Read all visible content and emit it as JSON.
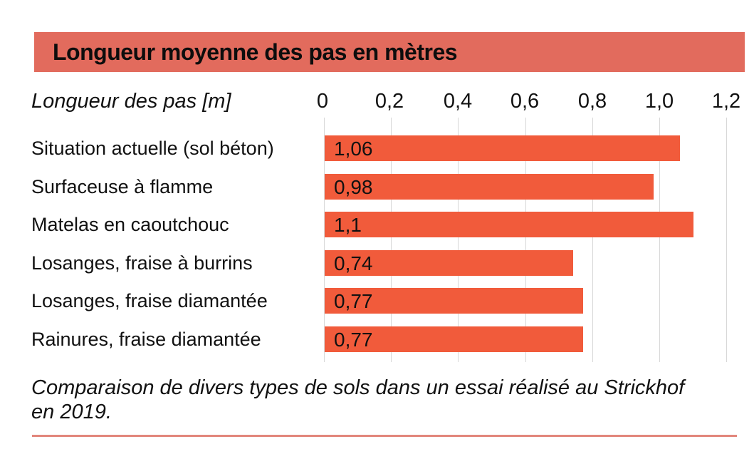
{
  "title": "Longueur moyenne des pas en mètres",
  "axis": {
    "label": "Longueur des pas [m]",
    "ticks": [
      "0",
      "0,2",
      "0,4",
      "0,6",
      "0,8",
      "1,0",
      "1,2"
    ]
  },
  "rows": [
    {
      "label": "Situation actuelle (sol béton)",
      "value_display": "1,06"
    },
    {
      "label": "Surfaceuse à flamme",
      "value_display": "0,98"
    },
    {
      "label": "Matelas en caoutchouc",
      "value_display": "1,1"
    },
    {
      "label": "Losanges, fraise à burrins",
      "value_display": "0,74"
    },
    {
      "label": "Losanges, fraise diamantée",
      "value_display": "0,77"
    },
    {
      "label": "Rainures, fraise diamantée",
      "value_display": "0,77"
    }
  ],
  "caption": {
    "text": "Comparaison de divers types de sols dans un essai réalisé au Strickhof en 2019.",
    "line1": "Comparaison de divers types de sols dans un essai réalisé au Strickhof",
    "line2": "en 2019."
  },
  "colors": {
    "title_bar_bg": "#e26b5d",
    "bar_fill": "#f15b3b",
    "gridline": "#d8d8d8",
    "bottom_rule": "#e2867c",
    "text": "#111111"
  },
  "chart_data": {
    "type": "bar",
    "orientation": "horizontal",
    "title": "Longueur moyenne des pas en mètres",
    "categories": [
      "Situation actuelle (sol béton)",
      "Surfaceuse à flamme",
      "Matelas en caoutchouc",
      "Losanges, fraise à burrins",
      "Losanges, fraise diamantée",
      "Rainures, fraise diamantée"
    ],
    "values": [
      1.06,
      0.98,
      1.1,
      0.74,
      0.77,
      0.77
    ],
    "value_labels": [
      "1,06",
      "0,98",
      "1,1",
      "0,74",
      "0,77",
      "0,77"
    ],
    "xlabel": "Longueur des pas [m]",
    "ylabel": "",
    "xlim": [
      0,
      1.2
    ],
    "xticks": [
      0,
      0.2,
      0.4,
      0.6,
      0.8,
      1.0,
      1.2
    ],
    "grid": true,
    "legend": false,
    "caption": "Comparaison de divers types de sols dans un essai réalisé au Strickhof en 2019."
  }
}
